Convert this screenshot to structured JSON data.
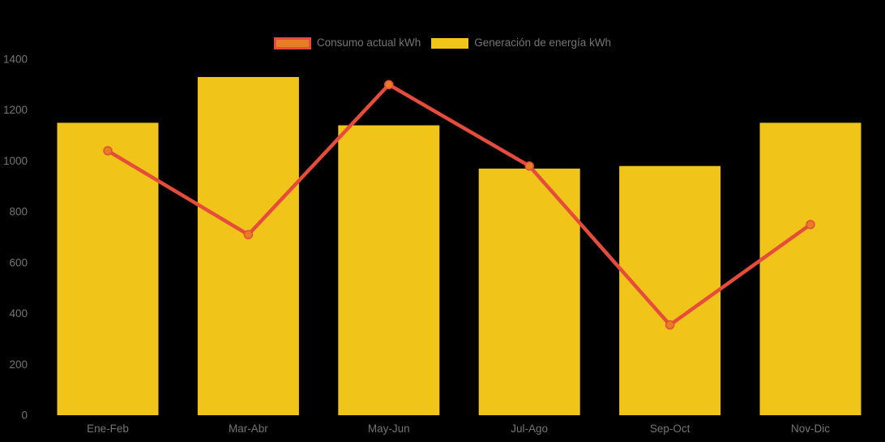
{
  "chart_data": {
    "type": "combo",
    "title": "",
    "categories": [
      "Ene-Feb",
      "Mar-Abr",
      "May-Jun",
      "Jul-Ago",
      "Sep-Oct",
      "Nov-Dic"
    ],
    "series": [
      {
        "name": "Consumo actual kWh",
        "type": "line",
        "values": [
          1040,
          710,
          1300,
          980,
          355,
          750
        ],
        "color": "#E64C3C",
        "marker_color": "#E57E25"
      },
      {
        "name": "Generación de energía kWh",
        "type": "bar",
        "values": [
          1150,
          1330,
          1140,
          970,
          980,
          1150
        ],
        "color": "#F0C419"
      }
    ],
    "xlabel": "",
    "ylabel": "",
    "ylim": [
      0,
      1400
    ],
    "yticks": [
      0,
      200,
      400,
      600,
      800,
      1000,
      1200,
      1400
    ],
    "grid": false,
    "legend_position": "top-center",
    "background_color": "#000000",
    "axis_label_color": "#757575"
  }
}
